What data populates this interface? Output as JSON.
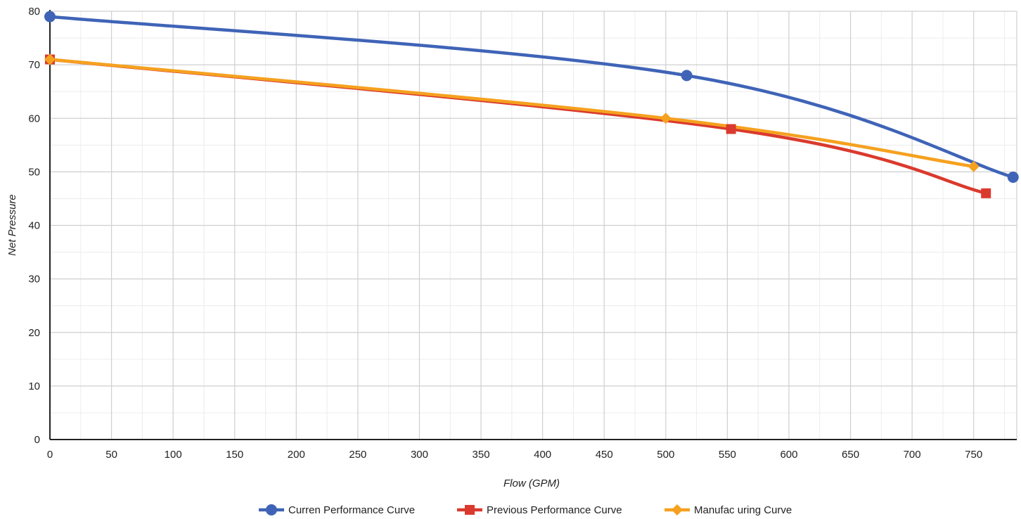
{
  "chart_data": {
    "type": "line",
    "xlabel": "Flow (GPM)",
    "ylabel": "Net Pressure",
    "xlim": [
      0,
      785
    ],
    "ylim": [
      0,
      80
    ],
    "x_ticks": [
      "0",
      "50",
      "100",
      "150",
      "200",
      "250",
      "300",
      "350",
      "400",
      "450",
      "500",
      "550",
      "600",
      "650",
      "700",
      "750"
    ],
    "y_ticks": [
      "0",
      "10",
      "20",
      "30",
      "40",
      "50",
      "60",
      "70",
      "80"
    ],
    "grid": true,
    "legend_position": "bottom",
    "series": [
      {
        "name": "Curren  Performance Curve",
        "color": "#3f64b7",
        "marker": "circle",
        "points": [
          {
            "x": 0,
            "y": 79
          },
          {
            "x": 517,
            "y": 68
          },
          {
            "x": 782,
            "y": 49
          }
        ]
      },
      {
        "name": "Previous Performance Curve",
        "color": "#da3a2d",
        "marker": "square",
        "points": [
          {
            "x": 0,
            "y": 71
          },
          {
            "x": 553,
            "y": 58
          },
          {
            "x": 760,
            "y": 46
          }
        ]
      },
      {
        "name": "Manufac uring Curve",
        "color": "#f5a11f",
        "marker": "diamond",
        "points": [
          {
            "x": 0,
            "y": 71
          },
          {
            "x": 500,
            "y": 60
          },
          {
            "x": 750,
            "y": 51
          }
        ]
      }
    ]
  }
}
